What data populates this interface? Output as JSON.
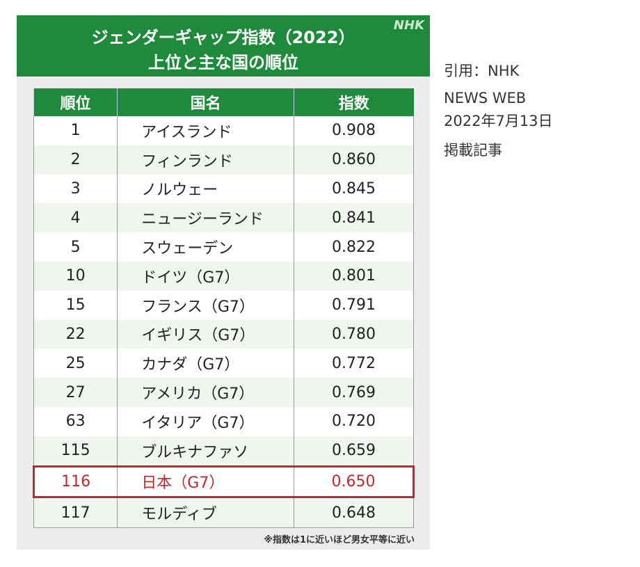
{
  "header": {
    "title_line1": "ジェンダーギャップ指数（2022）",
    "title_line2": "上位と主な国の順位",
    "logo": "NHK"
  },
  "table": {
    "columns": [
      "順位",
      "国名",
      "指数"
    ],
    "rows": [
      [
        "1",
        "アイスランド",
        "0.908"
      ],
      [
        "2",
        "フィンランド",
        "0.860"
      ],
      [
        "3",
        "ノルウェー",
        "0.845"
      ],
      [
        "4",
        "ニュージーランド",
        "0.841"
      ],
      [
        "5",
        "スウェーデン",
        "0.822"
      ],
      [
        "10",
        "ドイツ（G7）",
        "0.801"
      ],
      [
        "15",
        "フランス（G7）",
        "0.791"
      ],
      [
        "22",
        "イギリス（G7）",
        "0.780"
      ],
      [
        "25",
        "カナダ（G7）",
        "0.772"
      ],
      [
        "27",
        "アメリカ（G7）",
        "0.769"
      ],
      [
        "63",
        "イタリア（G7）",
        "0.720"
      ],
      [
        "115",
        "ブルキナファソ",
        "0.659"
      ],
      [
        "116",
        "日本（G7）",
        "0.650"
      ],
      [
        "117",
        "モルディブ",
        "0.648"
      ]
    ]
  },
  "footnote": "※指数は1に近いほど男女平等に近い",
  "source": {
    "line1": "引用：NHK",
    "line2": "NEWS WEB",
    "line3": "2022年7月13日",
    "line4": "掲載記事"
  }
}
